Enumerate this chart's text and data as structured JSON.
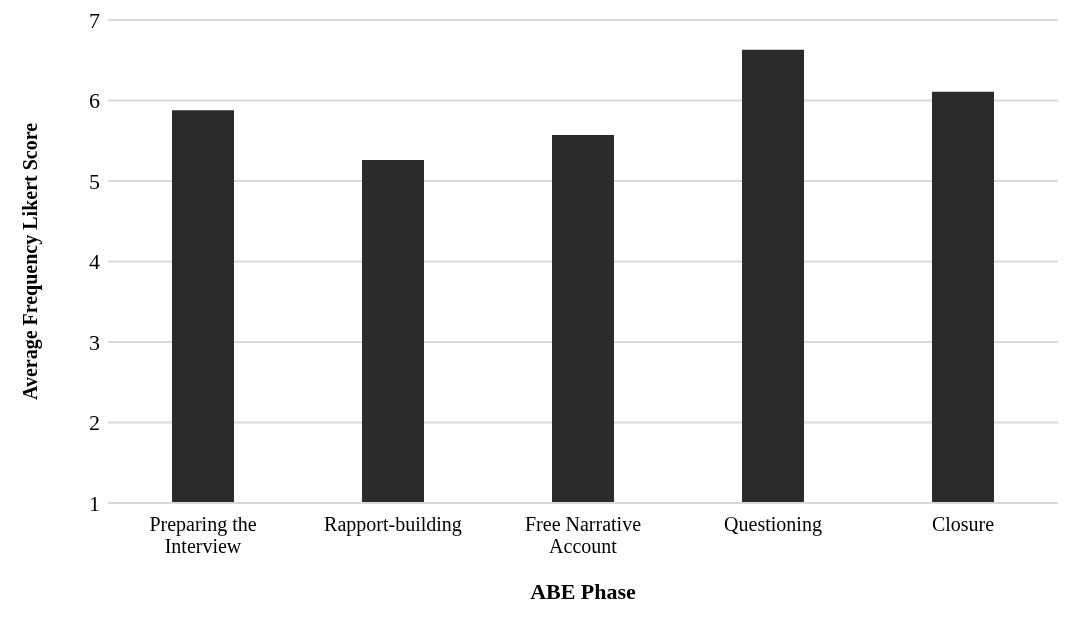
{
  "chart_data": {
    "type": "bar",
    "xlabel": "ABE Phase",
    "ylabel": "Average Frequency Likert Score",
    "categories": [
      "Preparing the Interview",
      "Rapport-building",
      "Free Narrative Account",
      "Questioning",
      "Closure"
    ],
    "values": [
      5.88,
      5.26,
      5.57,
      6.63,
      6.11
    ],
    "color": "#2b2b2b",
    "ylim": [
      1,
      7
    ],
    "yticks": [
      1,
      2,
      3,
      4,
      5,
      6,
      7
    ],
    "grid": "y"
  }
}
